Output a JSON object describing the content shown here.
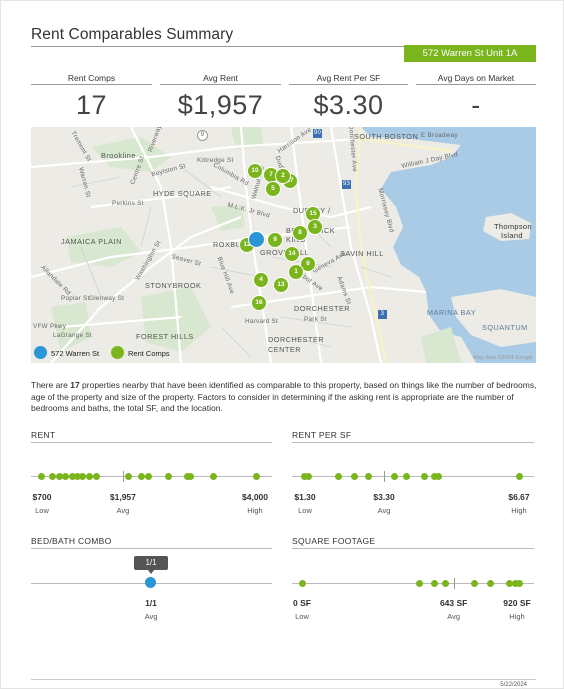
{
  "header": {
    "title": "Rent Comparables Summary",
    "address": "572 Warren St Unit 1A"
  },
  "stats": [
    {
      "label": "Rent Comps",
      "value": "17"
    },
    {
      "label": "Avg Rent",
      "value": "$1,957"
    },
    {
      "label": "Avg Rent Per SF",
      "value": "$3.30"
    },
    {
      "label": "Avg Days on Market",
      "value": "-"
    }
  ],
  "map": {
    "labels": {
      "south_boston": "SOUTH BOSTON",
      "brookline": "Brookline",
      "hyde_square": "HYDE SQUARE",
      "jamaica_plain": "JAMAICA PLAIN",
      "roxbury": "ROXBU",
      "dudley": "DUDLEY /",
      "brunswick": "BRUNSWICK",
      "king": "KING",
      "grovehall": "GROVEHALL",
      "savin_hill": "SAVIN HILL",
      "stonybrook": "STONYBROOK",
      "dorchester": "DORCHESTER",
      "marina_bay": "MARINA BAY",
      "squantum": "SQUANTUM",
      "thompson": "Thompson",
      "island": "Island",
      "dorchester2": "DORCHESTER",
      "forest_hills": "FOREST HILLS",
      "center": "CENTER",
      "broadway": "E Broadway",
      "william_j_day": "William J Day Blvd",
      "harrison": "Harrison Ave",
      "dorchester_ave": "Dorchester Ave",
      "morrissey": "Morrissey Blvd",
      "columbia": "Columbia Rd",
      "washington": "Washington St",
      "centre": "Centre St",
      "blue_hill": "Blue Hill Ave",
      "mlk": "M.L.K. Jr Blvd",
      "seaver": "Seaver St",
      "dudley_st": "Dudley St",
      "tremont": "Tremont St",
      "riverway": "Riverway",
      "warren": "Warren St",
      "perkins": "Perkins St",
      "boylston": "Boylston St",
      "walnut": "Walnut Ave",
      "harvard": "Harvard St",
      "park": "Park St",
      "talbot": "Talbot Ave",
      "vfw": "VFW Pkwy",
      "allandale": "Allandale Rd",
      "lagrange": "LaGrange St",
      "poplar": "Poplar St",
      "glenway": "Glenway St",
      "kittredge": "Kittredge St",
      "geneva": "Geneva Ave",
      "adams": "Adams St",
      "i93": "93",
      "i90": "90",
      "r9": "9",
      "r3": "3"
    },
    "pins": [
      {
        "n": "10",
        "type": "comp"
      },
      {
        "n": "7",
        "type": "comp"
      },
      {
        "n": "17",
        "type": "comp"
      },
      {
        "n": "5",
        "type": "comp"
      },
      {
        "n": "15",
        "type": "comp"
      },
      {
        "n": "3",
        "type": "comp"
      },
      {
        "n": "9",
        "type": "comp"
      },
      {
        "n": "12",
        "type": "comp"
      },
      {
        "n": "",
        "type": "subject"
      },
      {
        "n": "14",
        "type": "comp"
      },
      {
        "n": "6",
        "type": "comp"
      },
      {
        "n": "1",
        "type": "comp"
      },
      {
        "n": "4",
        "type": "comp"
      },
      {
        "n": "13",
        "type": "comp"
      },
      {
        "n": "16",
        "type": "comp"
      },
      {
        "n": "2",
        "type": "comp"
      },
      {
        "n": "8",
        "type": "comp"
      }
    ],
    "legend": {
      "subject": "572 Warren St",
      "comps": "Rent Comps"
    },
    "credit": "Map data ©2024 Google",
    "colors": {
      "subject": "#2b96d6",
      "comps": "#7ab51d",
      "water": "#aacbe6",
      "land": "#ecebe6"
    }
  },
  "description": {
    "before": "There are ",
    "count": "17",
    "after": " properties nearby that have been identified as comparable to this property, based on things like the number of bedrooms, age of the property and size of the property. Factors to consider in determining if the asking rent is appropriate are the number of bedrooms and baths, the total SF, and the location."
  },
  "sections": {
    "rent": {
      "title": "RENT",
      "low": "$700",
      "low_label": "Low",
      "avg": "$1,957",
      "avg_label": "Avg",
      "high": "$4,000",
      "high_label": "High",
      "min": 700,
      "max": 4000,
      "avg_value": 1957,
      "values": [
        700,
        880,
        980,
        1080,
        1180,
        1260,
        1330,
        1450,
        1550,
        2050,
        2250,
        2350,
        2650,
        2950,
        3000,
        3350,
        4000
      ]
    },
    "rent_sf": {
      "title": "RENT PER SF",
      "low": "$1.30",
      "low_label": "Low",
      "avg": "$3.30",
      "avg_label": "Avg",
      "high": "$6.67",
      "high_label": "High",
      "min": 1.3,
      "max": 6.67,
      "avg_value": 3.3,
      "values": [
        1.3,
        1.42,
        2.15,
        2.55,
        2.9,
        3.55,
        3.85,
        4.3,
        4.55,
        4.65,
        6.67
      ]
    },
    "bedbath": {
      "title": "BED/BATH COMBO",
      "value": "1/1",
      "value_label": "Avg",
      "tooltip": "1/1"
    },
    "sqft": {
      "title": "SQUARE FOOTAGE",
      "low": "0 SF",
      "low_label": "Low",
      "avg": "643 SF",
      "avg_label": "Avg",
      "high": "920 SF",
      "high_label": "High",
      "min": 0,
      "max": 920,
      "avg_value": 643,
      "values": [
        0,
        500,
        560,
        610,
        730,
        800,
        880,
        905,
        920
      ]
    }
  },
  "footer": {
    "date": "5/22/2024"
  }
}
